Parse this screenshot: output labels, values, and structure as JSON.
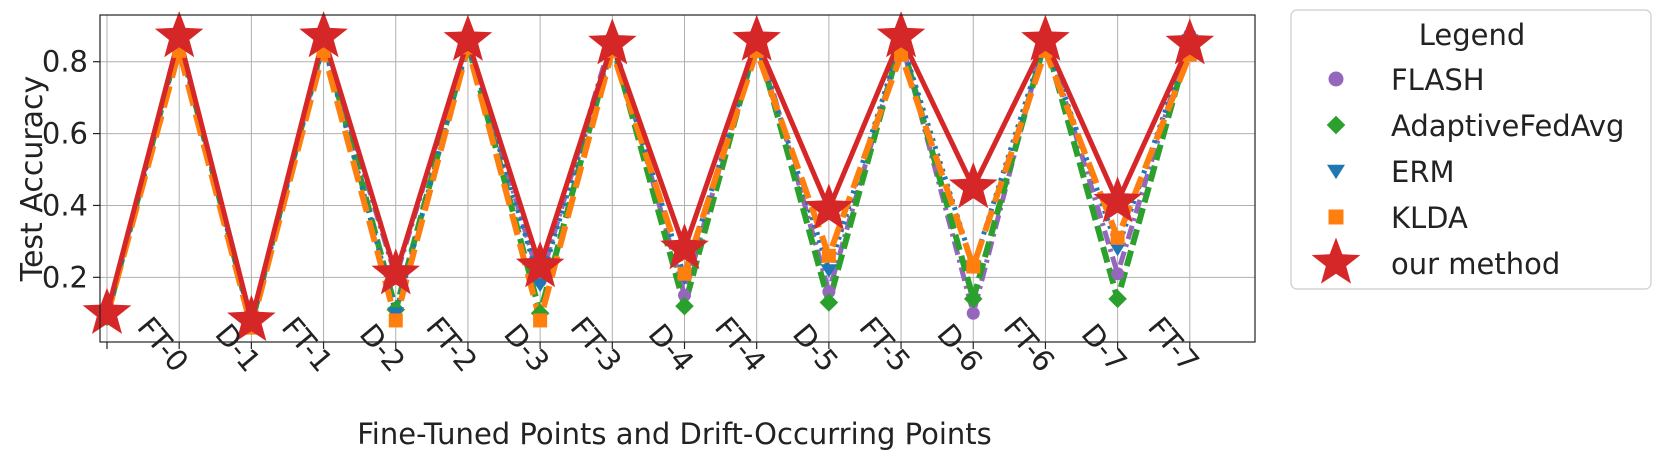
{
  "chart_data": {
    "type": "line",
    "title": "",
    "xlabel": "Fine-Tuned Points and Drift-Occurring Points",
    "ylabel": "Test Accuracy",
    "categories": [
      "",
      "FT-0",
      "D-1",
      "FT-1",
      "D-2",
      "FT-2",
      "D-3",
      "FT-3",
      "D-4",
      "FT-4",
      "D-5",
      "FT-5",
      "D-6",
      "FT-6",
      "D-7",
      "FT-7"
    ],
    "ylim": [
      0.02,
      0.93
    ],
    "yticks": [
      0.2,
      0.4,
      0.6,
      0.8
    ],
    "grid": true,
    "legend_title": "Legend",
    "legend_position": "outside-right",
    "series": [
      {
        "name": "FLASH",
        "color": "#9467bd",
        "marker": "circle",
        "dash": "dashdot",
        "values": [
          0.09,
          0.87,
          0.07,
          0.86,
          0.2,
          0.86,
          0.19,
          0.87,
          0.15,
          0.88,
          0.16,
          0.86,
          0.1,
          0.875,
          0.21,
          0.875
        ]
      },
      {
        "name": "AdaptiveFedAvg",
        "color": "#2ca02c",
        "marker": "diamond",
        "dash": "dash",
        "values": [
          0.09,
          0.86,
          0.07,
          0.86,
          0.11,
          0.85,
          0.1,
          0.85,
          0.12,
          0.86,
          0.13,
          0.86,
          0.14,
          0.86,
          0.14,
          0.86
        ]
      },
      {
        "name": "ERM",
        "color": "#1f77b4",
        "marker": "triangle-down",
        "dash": "dot",
        "values": [
          0.09,
          0.86,
          0.07,
          0.85,
          0.1,
          0.85,
          0.18,
          0.85,
          0.2,
          0.85,
          0.22,
          0.86,
          0.23,
          0.86,
          0.28,
          0.86
        ]
      },
      {
        "name": "KLDA",
        "color": "#ff7f0e",
        "marker": "square",
        "dash": "longdash",
        "values": [
          0.09,
          0.83,
          0.06,
          0.83,
          0.08,
          0.84,
          0.08,
          0.83,
          0.21,
          0.83,
          0.26,
          0.82,
          0.23,
          0.83,
          0.31,
          0.82
        ]
      },
      {
        "name": "our method",
        "color": "#d62728",
        "marker": "star",
        "dash": "solid",
        "values": [
          0.1,
          0.87,
          0.08,
          0.87,
          0.21,
          0.86,
          0.23,
          0.85,
          0.28,
          0.86,
          0.39,
          0.87,
          0.45,
          0.86,
          0.41,
          0.85
        ]
      }
    ]
  }
}
